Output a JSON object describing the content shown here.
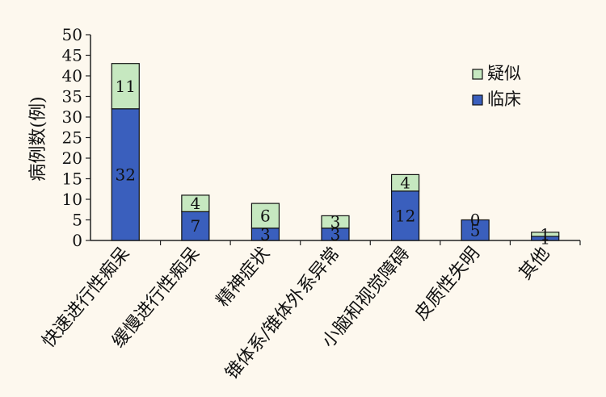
{
  "chart_data": {
    "type": "bar",
    "stacked": true,
    "ylabel": "病例数(例)",
    "ylim": [
      0,
      50
    ],
    "yticks": [
      0,
      5,
      10,
      15,
      20,
      25,
      30,
      35,
      40,
      45,
      50
    ],
    "grid": false,
    "legend_position": "top-right",
    "categories": [
      "快速进行性痴呆",
      "缓慢进行性痴呆",
      "精神症状",
      "锥体系/锥体外系异常",
      "小脑和视觉障碍",
      "皮质性失明",
      "其他"
    ],
    "series": [
      {
        "name": "临床",
        "values": [
          32,
          7,
          3,
          3,
          12,
          5,
          1
        ],
        "color": "#3a5fbd"
      },
      {
        "name": "疑似",
        "values": [
          11,
          4,
          6,
          3,
          4,
          0,
          1
        ],
        "color": "#c6e8c0"
      }
    ]
  }
}
